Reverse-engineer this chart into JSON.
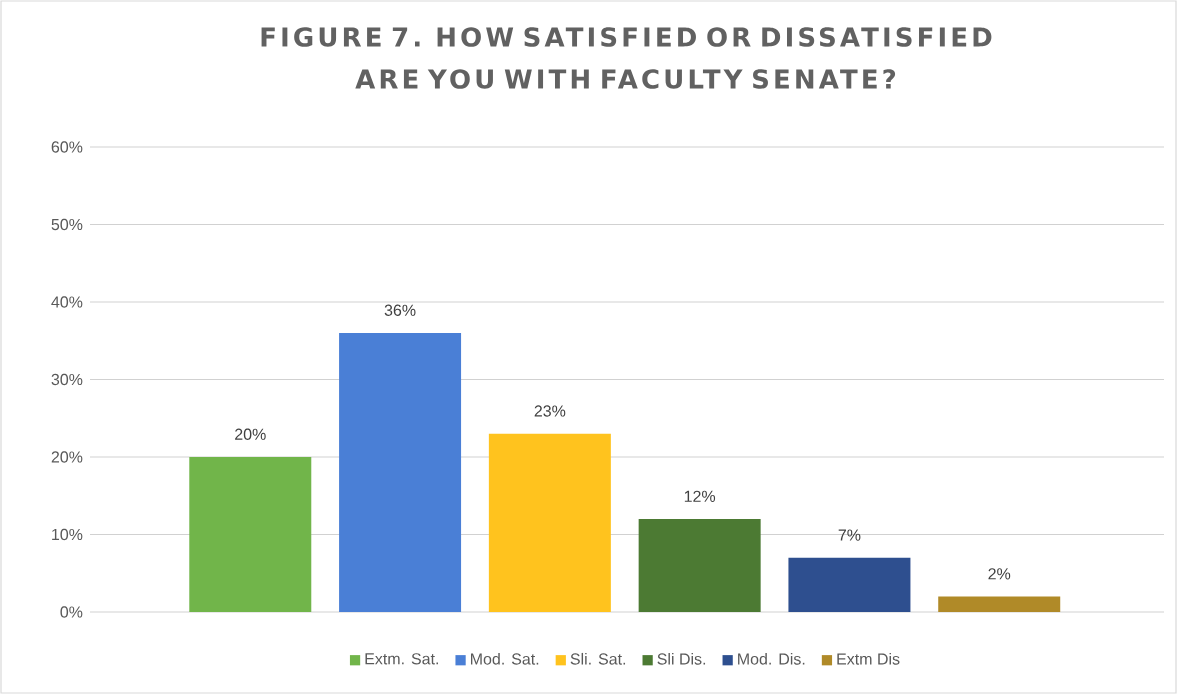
{
  "chart_data": {
    "type": "bar",
    "title": "FIGURE 7. HOW SATISFIED OR DISSATISFIED ARE YOU WITH FACULTY SENATE?",
    "categories": [
      null,
      null,
      null,
      null,
      null,
      null
    ],
    "series": [
      {
        "name": "Extm. Sat.",
        "color": "#71b54a",
        "values": [
          20,
          null,
          null,
          null,
          null,
          null
        ],
        "value_labels": [
          "20%",
          null,
          null,
          null,
          null,
          null
        ]
      },
      {
        "name": "Mod. Sat.",
        "color": "#4a7fd6",
        "values": [
          null,
          36,
          null,
          null,
          null,
          null
        ],
        "value_labels": [
          null,
          "36%",
          null,
          null,
          null,
          null
        ]
      },
      {
        "name": "Sli. Sat.",
        "color": "#ffc31e",
        "values": [
          null,
          null,
          23,
          null,
          null,
          null
        ],
        "value_labels": [
          null,
          null,
          "23%",
          null,
          null,
          null
        ]
      },
      {
        "name": "Sli Dis.",
        "color": "#4c7a33",
        "values": [
          null,
          null,
          null,
          12,
          null,
          null
        ],
        "value_labels": [
          null,
          null,
          null,
          "12%",
          null,
          null
        ]
      },
      {
        "name": "Mod. Dis.",
        "color": "#2e4f8f",
        "values": [
          null,
          null,
          null,
          null,
          7,
          null
        ],
        "value_labels": [
          null,
          null,
          null,
          null,
          "7%",
          null
        ]
      },
      {
        "name": "Extm Dis",
        "color": "#b08a28",
        "values": [
          null,
          null,
          null,
          null,
          null,
          2
        ],
        "value_labels": [
          null,
          null,
          null,
          null,
          null,
          "2%"
        ]
      }
    ],
    "ylim": [
      0,
      60
    ],
    "yticks": [
      {
        "value": 0,
        "label": "0%"
      },
      {
        "value": 10,
        "label": "10%"
      },
      {
        "value": 20,
        "label": "20%"
      },
      {
        "value": 30,
        "label": "30%"
      },
      {
        "value": 40,
        "label": "40%"
      },
      {
        "value": 50,
        "label": "50%"
      },
      {
        "value": 60,
        "label": "60%"
      }
    ],
    "grid": "y",
    "legend": "bottom"
  }
}
